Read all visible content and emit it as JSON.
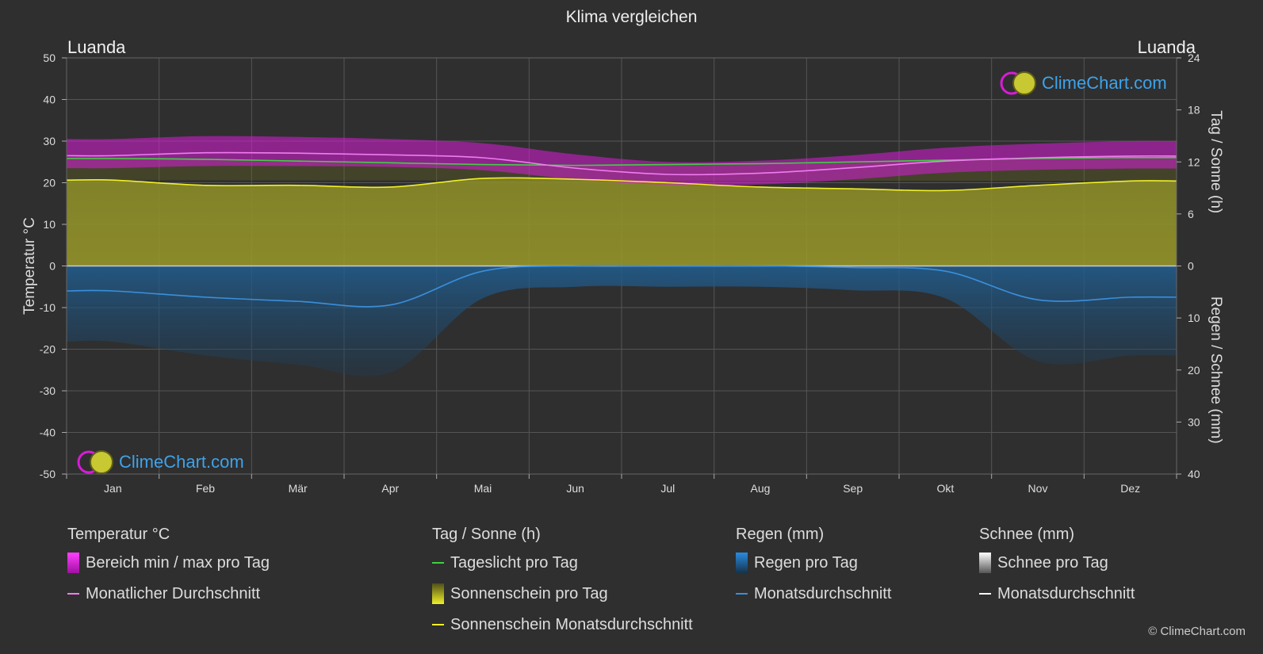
{
  "title": "Klima vergleichen",
  "city_left": "Luanda",
  "city_right": "Luanda",
  "logo_text": "ClimeChart.com",
  "copyright": "© ClimeChart.com",
  "colors": {
    "background": "#2f2f2f",
    "temp_range": "#d81bd8",
    "temp_avg": "#f07cf0",
    "daylight": "#3fd13f",
    "sunshine_fill": "#b5b52e",
    "sunshine_avg": "#f0f028",
    "rain_fill": "#1f5c8e",
    "rain_avg": "#3a8fdc",
    "snow_avg": "#ffffff"
  },
  "legend": {
    "temperature": {
      "title": "Temperatur °C",
      "range_label": "Bereich min / max pro Tag",
      "avg_label": "Monatlicher Durchschnitt"
    },
    "sun": {
      "title": "Tag / Sonne (h)",
      "daylight_label": "Tageslicht pro Tag",
      "sunshine_label": "Sonnenschein pro Tag",
      "sunshine_avg_label": "Sonnenschein Monatsdurchschnitt"
    },
    "rain": {
      "title": "Regen (mm)",
      "rain_label": "Regen pro Tag",
      "avg_label": "Monatsdurchschnitt"
    },
    "snow": {
      "title": "Schnee (mm)",
      "snow_label": "Schnee pro Tag",
      "avg_label": "Monatsdurchschnitt"
    }
  },
  "chart_data": {
    "type": "area",
    "categories": [
      "Jan",
      "Feb",
      "Mär",
      "Apr",
      "Mai",
      "Jun",
      "Jul",
      "Aug",
      "Sep",
      "Okt",
      "Nov",
      "Dez"
    ],
    "y_left": {
      "label": "Temperatur °C",
      "range": [
        -50,
        50
      ],
      "ticks": [
        50,
        40,
        30,
        20,
        10,
        0,
        -10,
        -20,
        -30,
        -40,
        -50
      ]
    },
    "y_right_top": {
      "label": "Tag / Sonne (h)",
      "range": [
        0,
        24
      ],
      "ticks": [
        24,
        18,
        12,
        6,
        0
      ]
    },
    "y_right_bottom": {
      "label": "Regen / Schnee (mm)",
      "range": [
        0,
        40
      ],
      "ticks": [
        10,
        20,
        30,
        40
      ]
    },
    "grid": true,
    "series": [
      {
        "name": "Monatlicher Durchschnitt",
        "axis": "temperature",
        "values": [
          26.5,
          27.2,
          27.1,
          26.7,
          26.0,
          23.5,
          22.0,
          22.3,
          23.6,
          25.2,
          26.0,
          26.4
        ]
      },
      {
        "name": "Bereich min / max pro Tag (max)",
        "axis": "temperature",
        "values": [
          30.5,
          31.2,
          31.0,
          30.5,
          29.5,
          26.8,
          25.0,
          25.3,
          26.6,
          28.4,
          29.4,
          30.0
        ]
      },
      {
        "name": "Bereich min / max pro Tag (min)",
        "axis": "temperature",
        "values": [
          23.5,
          24.0,
          24.0,
          23.8,
          23.0,
          20.8,
          19.5,
          19.6,
          20.8,
          22.4,
          23.1,
          23.4
        ]
      },
      {
        "name": "Tageslicht pro Tag",
        "axis": "sun",
        "values": [
          12.4,
          12.3,
          12.1,
          11.9,
          11.7,
          11.6,
          11.7,
          11.8,
          12.0,
          12.2,
          12.4,
          12.5
        ]
      },
      {
        "name": "Sonnenschein Monatsdurchschnitt",
        "axis": "sun",
        "values": [
          9.9,
          9.3,
          9.3,
          9.1,
          10.1,
          10.0,
          9.6,
          9.1,
          8.9,
          8.7,
          9.3,
          9.8
        ]
      },
      {
        "name": "Regen Monatsdurchschnitt",
        "axis": "rain",
        "values": [
          4.8,
          6.0,
          6.8,
          7.5,
          1.0,
          0.0,
          0.0,
          0.0,
          0.3,
          1.0,
          6.5,
          6.0
        ]
      }
    ]
  }
}
